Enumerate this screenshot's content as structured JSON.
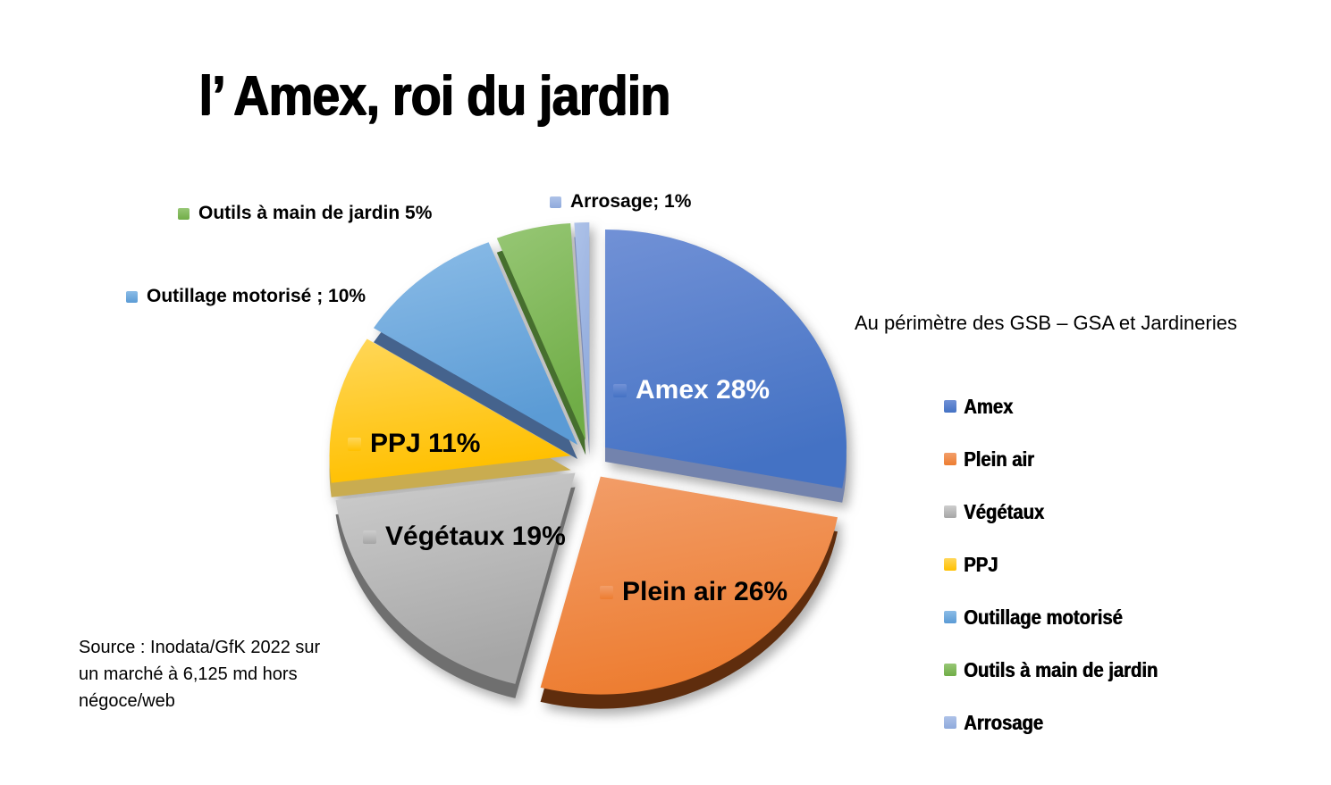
{
  "title": "l’ Amex, roi du jardin",
  "subtitle": "Au périmètre des GSB – GSA et Jardineries",
  "source_lines": [
    "Source : Inodata/GfK 2022 sur",
    "un marché à 6,125 md hors",
    "négoce/web"
  ],
  "chart_data": {
    "type": "pie",
    "style": "3d-exploded",
    "title": "l’ Amex, roi du jardin",
    "unit": "%",
    "start_angle_deg": 0,
    "direction": "clockwise",
    "legend_position": "right",
    "slices": [
      {
        "name": "Amex",
        "value": 28,
        "data_label": "Amex 28%",
        "label_placement": "inside",
        "label_text_color": "#FFFFFF",
        "color": "#4472C4",
        "color_light": "#7191D6",
        "color_dark": "#7383AD"
      },
      {
        "name": "Plein air",
        "value": 26,
        "data_label": "Plein air 26%",
        "label_placement": "inside",
        "label_text_color": "#000000",
        "color": "#ED7D31",
        "color_light": "#F29E6A",
        "color_dark": "#5F2D0D"
      },
      {
        "name": "Végétaux",
        "value": 19,
        "data_label": "Végétaux 19%",
        "label_placement": "inside",
        "label_text_color": "#000000",
        "color": "#A6A6A6",
        "color_light": "#CDCDCD",
        "color_dark": "#6F6F6F"
      },
      {
        "name": "PPJ",
        "value": 11,
        "data_label": "PPJ 11%",
        "label_placement": "inside",
        "label_text_color": "#000000",
        "color": "#FFC000",
        "color_light": "#FFD75A",
        "color_dark": "#C9AC50"
      },
      {
        "name": "Outillage motorisé",
        "value": 10,
        "data_label": "Outillage motorisé ; 10%",
        "label_placement": "callout",
        "label_text_color": "#000000",
        "color": "#5B9BD5",
        "color_light": "#8BBCE7",
        "color_dark": "#45638D"
      },
      {
        "name": "Outils à main de jardin",
        "value": 5,
        "data_label": "Outils à main de jardin 5%",
        "label_placement": "callout",
        "label_text_color": "#000000",
        "color": "#70AD47",
        "color_light": "#97C775",
        "color_dark": "#466F2E"
      },
      {
        "name": "Arrosage",
        "value": 1,
        "data_label": "Arrosage; 1%",
        "label_placement": "callout",
        "label_text_color": "#000000",
        "color": "#8FAADC",
        "color_light": "#AEC2E8",
        "color_dark": "#7C8BB5"
      }
    ]
  }
}
